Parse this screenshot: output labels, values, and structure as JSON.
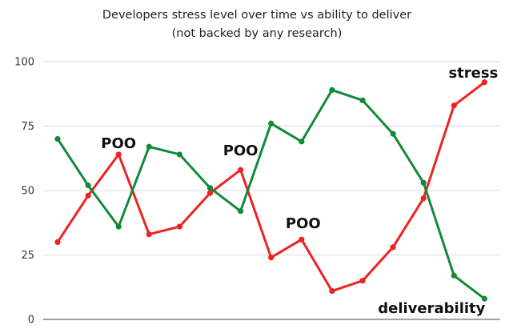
{
  "chart_data": {
    "type": "line",
    "title": "Developers stress level over time vs ability to deliver",
    "subtitle": "(not backed by any research)",
    "x": [
      1,
      2,
      3,
      4,
      5,
      6,
      7,
      8,
      9,
      10,
      11,
      12,
      13,
      14,
      15,
      16
    ],
    "ylim": [
      0,
      100
    ],
    "yticks": [
      "0",
      "25",
      "50",
      "75",
      "100"
    ],
    "grid": true,
    "series": [
      {
        "color": "#ee2222",
        "values": [
          30,
          48,
          64,
          33,
          36,
          49,
          58,
          24,
          31,
          11,
          15,
          28,
          47,
          83,
          92,
          null
        ]
      },
      {
        "color": "#128a3a",
        "values": [
          70,
          52,
          36,
          67,
          64,
          51,
          42,
          76,
          69,
          89,
          85,
          72,
          53,
          17,
          8,
          null
        ]
      }
    ],
    "annotations": [
      {
        "text": "stress",
        "x": 15,
        "y": 92
      },
      {
        "text": "deliverability",
        "x": 15,
        "y": 8
      },
      {
        "text": "POO",
        "x": 3,
        "y": 64
      },
      {
        "text": "POO",
        "x": 7,
        "y": 58
      },
      {
        "text": "POO",
        "x": 9,
        "y": 31
      }
    ]
  }
}
